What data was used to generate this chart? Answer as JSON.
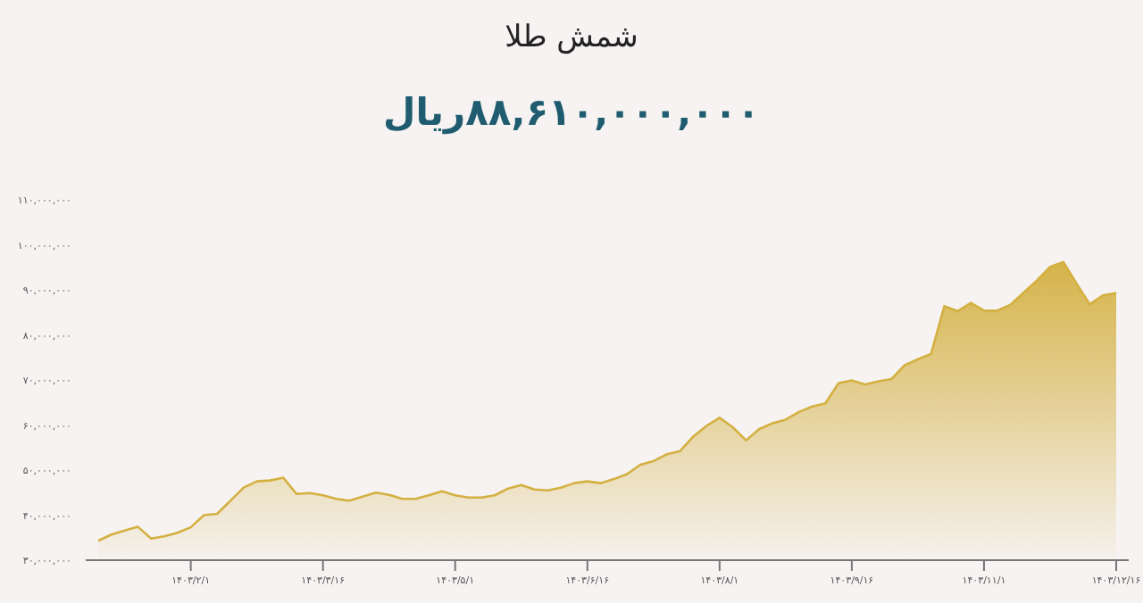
{
  "chart_data": {
    "type": "area",
    "title": "شمش طلا",
    "subtitle": "۸۸,۶۱۰,۰۰۰,۰۰۰ریال",
    "color": "#d4b041",
    "categories": [
      null,
      null,
      null,
      null,
      null,
      null,
      null,
      "۱۴۰۳/۲/۱",
      null,
      null,
      null,
      null,
      null,
      null,
      null,
      null,
      null,
      "۱۴۰۳/۳/۱۶",
      null,
      null,
      null,
      null,
      null,
      null,
      null,
      null,
      null,
      "۱۴۰۳/۵/۱",
      null,
      null,
      null,
      null,
      null,
      null,
      null,
      null,
      null,
      "۱۴۰۳/۶/۱۶",
      null,
      null,
      null,
      null,
      null,
      null,
      null,
      null,
      null,
      "۱۴۰۳/۸/۱",
      null,
      null,
      null,
      null,
      null,
      null,
      null,
      null,
      null,
      "۱۴۰۳/۹/۱۶",
      null,
      null,
      null,
      null,
      null,
      null,
      null,
      null,
      null,
      "۱۴۰۳/۱۱/۱",
      null,
      null,
      null,
      null,
      null,
      null,
      null,
      null,
      null,
      "۱۴۰۳/۱۲/۱۶"
    ],
    "values": [
      34300000,
      35700000,
      36600000,
      37400000,
      34800000,
      35300000,
      36100000,
      37300000,
      40000000,
      40300000,
      43200000,
      46100000,
      47500000,
      47700000,
      48300000,
      44700000,
      44900000,
      44400000,
      43600000,
      43200000,
      44100000,
      45000000,
      44500000,
      43600000,
      43600000,
      44400000,
      45300000,
      44400000,
      43900000,
      43900000,
      44400000,
      45900000,
      46700000,
      45700000,
      45500000,
      46100000,
      47100000,
      47500000,
      47100000,
      48000000,
      49100000,
      51200000,
      52000000,
      53500000,
      54200000,
      57400000,
      59800000,
      61600000,
      59500000,
      56600000,
      59100000,
      60400000,
      61200000,
      62900000,
      64100000,
      64800000,
      69300000,
      69900000,
      69000000,
      69700000,
      70200000,
      73300000,
      74600000,
      75800000,
      86400000,
      85300000,
      87100000,
      85400000,
      85400000,
      86700000,
      89400000,
      92100000,
      95100000,
      96200000,
      91400000,
      86800000,
      88800000,
      89300000
    ],
    "ylim": [
      30000000,
      110000000
    ],
    "yticks": [
      {
        "value": 30000000,
        "label": "۳۰,۰۰۰,۰۰۰"
      },
      {
        "value": 40000000,
        "label": "۴۰,۰۰۰,۰۰۰"
      },
      {
        "value": 50000000,
        "label": "۵۰,۰۰۰,۰۰۰"
      },
      {
        "value": 60000000,
        "label": "۶۰,۰۰۰,۰۰۰"
      },
      {
        "value": 70000000,
        "label": "۷۰,۰۰۰,۰۰۰"
      },
      {
        "value": 80000000,
        "label": "۸۰,۰۰۰,۰۰۰"
      },
      {
        "value": 90000000,
        "label": "۹۰,۰۰۰,۰۰۰"
      },
      {
        "value": 100000000,
        "label": "۱۰۰,۰۰۰,۰۰۰"
      },
      {
        "value": 110000000,
        "label": "۱۱۰,۰۰۰,۰۰۰"
      }
    ]
  }
}
